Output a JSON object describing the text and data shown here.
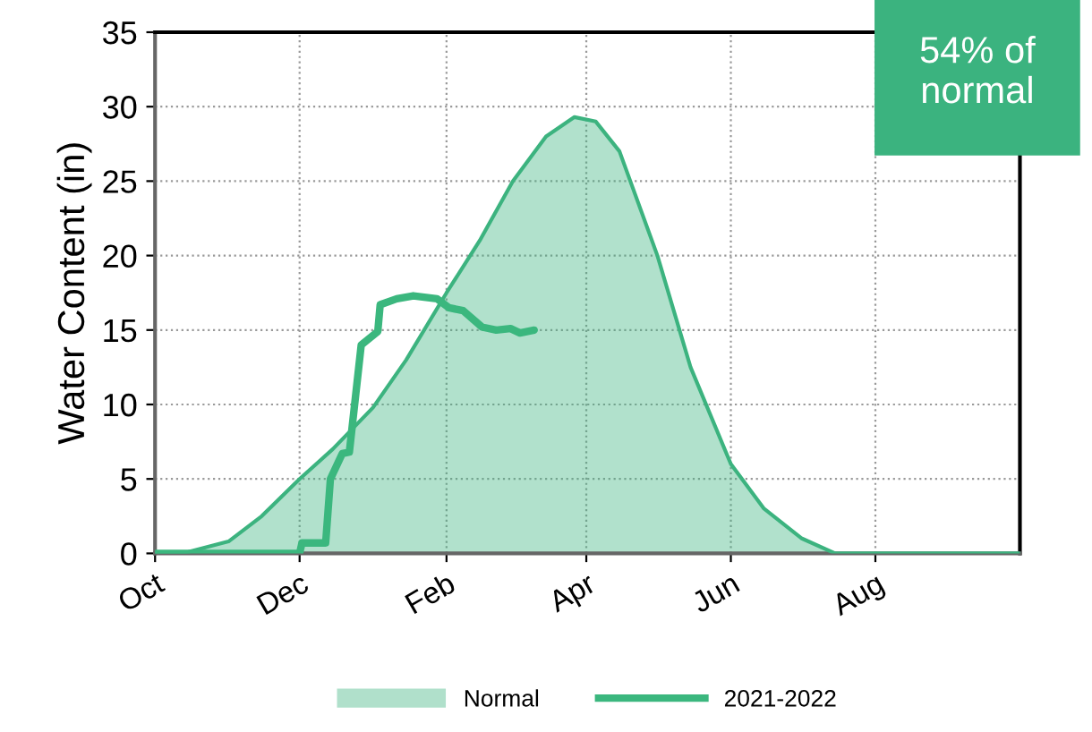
{
  "chart_data": {
    "type": "area",
    "ylabel": "Water Content (in)",
    "annotations": [
      "54% of normal"
    ],
    "xlim": [
      "2021-10-01",
      "2022-10-01"
    ],
    "xticks": [
      {
        "value": "2021-10-01",
        "label": "Oct"
      },
      {
        "value": "2021-12-01",
        "label": "Dec"
      },
      {
        "value": "2022-02-01",
        "label": "Feb"
      },
      {
        "value": "2022-04-01",
        "label": "Apr"
      },
      {
        "value": "2022-06-01",
        "label": "Jun"
      },
      {
        "value": "2022-08-01",
        "label": "Aug"
      }
    ],
    "ylim": [
      0,
      35
    ],
    "yticks": [
      0,
      5,
      10,
      15,
      20,
      25,
      30,
      35
    ],
    "grid": true,
    "legend": "bottom",
    "series": [
      {
        "name": "Normal",
        "color": "#3cb37f",
        "x": [
          "2021-10-01",
          "2021-10-15",
          "2021-11-01",
          "2021-11-15",
          "2021-12-01",
          "2021-12-15",
          "2022-01-01",
          "2022-01-15",
          "2022-02-01",
          "2022-02-15",
          "2022-03-01",
          "2022-03-15",
          "2022-03-27",
          "2022-04-05",
          "2022-04-15",
          "2022-05-01",
          "2022-05-15",
          "2022-06-01",
          "2022-06-15",
          "2022-07-01",
          "2022-07-15",
          "2022-10-01"
        ],
        "values": [
          0,
          0.1,
          0.8,
          2.5,
          5,
          7,
          9.8,
          13,
          17.5,
          21,
          25,
          28,
          29.3,
          29,
          27,
          20,
          12.5,
          6,
          3,
          1,
          0,
          0
        ]
      },
      {
        "name": "2021-2022",
        "type": "line",
        "color": "#3bb77e",
        "x": [
          "2021-10-01",
          "2021-12-01",
          "2021-12-02",
          "2021-12-12",
          "2021-12-14",
          "2021-12-19",
          "2021-12-22",
          "2021-12-27",
          "2022-01-03",
          "2022-01-04",
          "2022-01-11",
          "2022-01-18",
          "2022-01-28",
          "2022-02-02",
          "2022-02-08",
          "2022-02-16",
          "2022-02-22",
          "2022-02-28",
          "2022-03-04",
          "2022-03-10"
        ],
        "values": [
          0,
          0,
          0.7,
          0.7,
          5,
          6.7,
          6.8,
          14,
          14.9,
          16.7,
          17.1,
          17.3,
          17.1,
          16.5,
          16.3,
          15.2,
          15,
          15.1,
          14.8,
          15
        ]
      }
    ]
  }
}
